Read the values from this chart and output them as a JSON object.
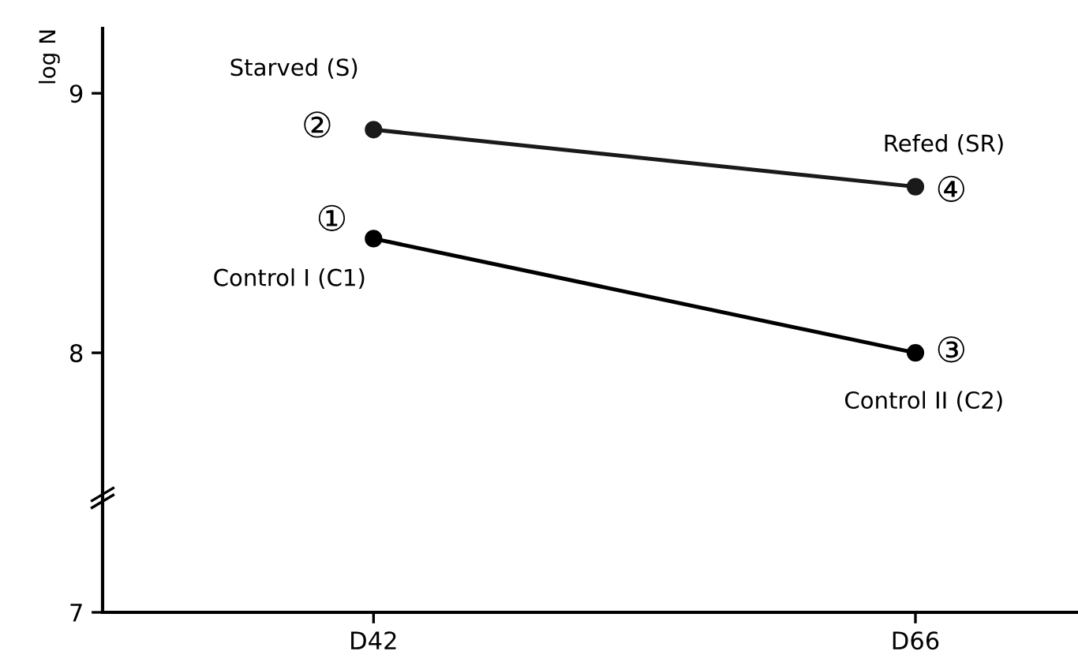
{
  "chart_data": {
    "type": "line",
    "ylabel": "log N",
    "categories": [
      "D42",
      "D66"
    ],
    "series": [
      {
        "color": "#1a1a1a",
        "values": [
          8.86,
          8.64
        ]
      },
      {
        "color": "#000000",
        "values": [
          8.44,
          8.0
        ]
      }
    ],
    "ylim": [
      7,
      9.25
    ],
    "yticks": [
      7,
      8,
      9
    ],
    "marker": "circle",
    "line_style": "solid",
    "grid": false,
    "legend": false,
    "annotations": [
      "Starved (S)",
      "②",
      "Refed (SR)",
      "④",
      "①",
      "Control I (C1)",
      "③",
      "Control II (C2)"
    ]
  }
}
